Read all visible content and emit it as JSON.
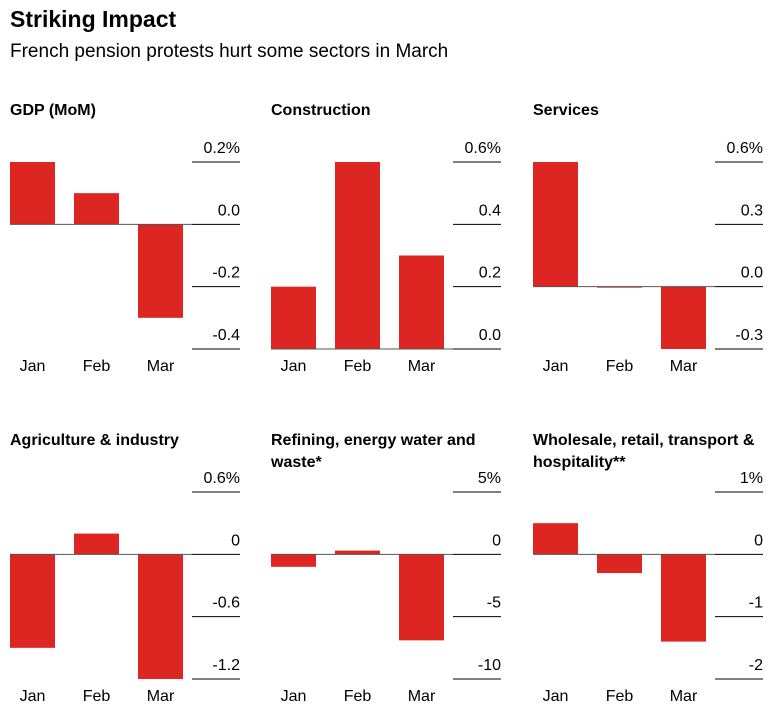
{
  "title": "Striking Impact",
  "subtitle": "French pension protests hurt some sectors in March",
  "chart_data": [
    {
      "type": "bar",
      "title": "GDP (MoM)",
      "categories": [
        "Jan",
        "Feb",
        "Mar"
      ],
      "values": [
        0.2,
        0.1,
        -0.3
      ],
      "color": "#dd2522",
      "ylim": [
        -0.4,
        0.2
      ],
      "yticks": [
        {
          "value": 0.2,
          "label": "0.2%"
        },
        {
          "value": 0,
          "label": "0.0"
        },
        -0.2,
        -0.4
      ]
    },
    {
      "type": "bar",
      "title": "Construction",
      "categories": [
        "Jan",
        "Feb",
        "Mar"
      ],
      "values": [
        0.2,
        0.6,
        0.3
      ],
      "color": "#dd2522",
      "ylim": [
        0,
        0.6
      ],
      "yticks": [
        {
          "value": 0.6,
          "label": "0.6%"
        },
        0.4,
        0.2,
        {
          "value": 0,
          "label": "0.0"
        }
      ]
    },
    {
      "type": "bar",
      "title": "Services",
      "categories": [
        "Jan",
        "Feb",
        "Mar"
      ],
      "values": [
        0.6,
        0,
        -0.3
      ],
      "color": "#dd2522",
      "ylim": [
        -0.3,
        0.6
      ],
      "yticks": [
        {
          "value": 0.6,
          "label": "0.6%"
        },
        0.3,
        {
          "value": 0,
          "label": "0.0"
        },
        -0.3
      ]
    },
    {
      "type": "bar",
      "title": "Agriculture & industry",
      "categories": [
        "Jan",
        "Feb",
        "Mar"
      ],
      "values": [
        -0.9,
        0.2,
        -1.2
      ],
      "color": "#dd2522",
      "ylim": [
        -1.2,
        0.6
      ],
      "yticks": [
        {
          "value": 0.6,
          "label": "0.6%"
        },
        0,
        -0.6,
        -1.2
      ]
    },
    {
      "type": "bar",
      "title": "Refining, energy water and waste*",
      "categories": [
        "Jan",
        "Feb",
        "Mar"
      ],
      "values": [
        -1,
        0.3,
        -6.9
      ],
      "color": "#dd2522",
      "ylim": [
        -10,
        5
      ],
      "yticks": [
        {
          "value": 5,
          "label": "5%"
        },
        0,
        -5,
        -10
      ]
    },
    {
      "type": "bar",
      "title": "Wholesale, retail, transport & hospitality**",
      "categories": [
        "Jan",
        "Feb",
        "Mar"
      ],
      "values": [
        0.5,
        -0.3,
        -1.4
      ],
      "color": "#dd2522",
      "ylim": [
        -2,
        1
      ],
      "yticks": [
        {
          "value": 1,
          "label": "1%"
        },
        0,
        -1,
        -2
      ]
    }
  ]
}
